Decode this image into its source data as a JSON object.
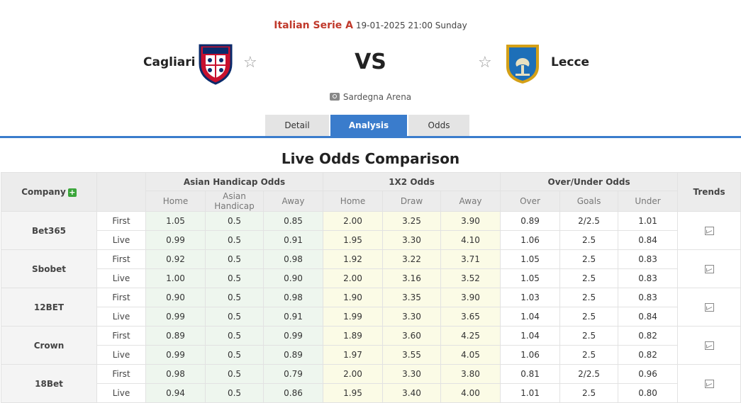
{
  "match": {
    "league": "Italian Serie A",
    "datetime": "19-01-2025 21:00 Sunday",
    "home_team": "Cagliari",
    "away_team": "Lecce",
    "vs": "VS",
    "venue": "Sardegna Arena",
    "home_logo_text": "CAGLIARI",
    "away_logo_text": "LECCE"
  },
  "tabs": [
    {
      "label": "Detail"
    },
    {
      "label": "Analysis"
    },
    {
      "label": "Odds"
    }
  ],
  "section_title": "Live Odds Comparison",
  "table": {
    "company_header": "Company",
    "trends_header": "Trends",
    "groups": [
      "Asian Handicap Odds",
      "1X2 Odds",
      "Over/Under Odds"
    ],
    "subheaders": [
      "Home",
      "Asian Handicap",
      "Away",
      "Home",
      "Draw",
      "Away",
      "Over",
      "Goals",
      "Under"
    ],
    "companies": [
      {
        "name": "Bet365",
        "rows": [
          {
            "type": "First",
            "vals": [
              "1.05",
              "0.5",
              "0.85",
              "2.00",
              "3.25",
              "3.90",
              "0.89",
              "2/2.5",
              "1.01"
            ]
          },
          {
            "type": "Live",
            "vals": [
              "0.99",
              "0.5",
              "0.91",
              "1.95",
              "3.30",
              "4.10",
              "1.06",
              "2.5",
              "0.84"
            ]
          }
        ]
      },
      {
        "name": "Sbobet",
        "rows": [
          {
            "type": "First",
            "vals": [
              "0.92",
              "0.5",
              "0.98",
              "1.92",
              "3.22",
              "3.71",
              "1.05",
              "2.5",
              "0.83"
            ]
          },
          {
            "type": "Live",
            "vals": [
              "1.00",
              "0.5",
              "0.90",
              "2.00",
              "3.16",
              "3.52",
              "1.05",
              "2.5",
              "0.83"
            ]
          }
        ]
      },
      {
        "name": "12BET",
        "rows": [
          {
            "type": "First",
            "vals": [
              "0.90",
              "0.5",
              "0.98",
              "1.90",
              "3.35",
              "3.90",
              "1.03",
              "2.5",
              "0.83"
            ]
          },
          {
            "type": "Live",
            "vals": [
              "0.99",
              "0.5",
              "0.91",
              "1.99",
              "3.30",
              "3.65",
              "1.04",
              "2.5",
              "0.84"
            ]
          }
        ]
      },
      {
        "name": "Crown",
        "rows": [
          {
            "type": "First",
            "vals": [
              "0.89",
              "0.5",
              "0.99",
              "1.89",
              "3.60",
              "4.25",
              "1.04",
              "2.5",
              "0.82"
            ]
          },
          {
            "type": "Live",
            "vals": [
              "0.99",
              "0.5",
              "0.89",
              "1.97",
              "3.55",
              "4.05",
              "1.06",
              "2.5",
              "0.82"
            ]
          }
        ]
      },
      {
        "name": "18Bet",
        "rows": [
          {
            "type": "First",
            "vals": [
              "0.98",
              "0.5",
              "0.79",
              "2.00",
              "3.30",
              "3.80",
              "0.81",
              "2/2.5",
              "0.96"
            ]
          },
          {
            "type": "Live",
            "vals": [
              "0.94",
              "0.5",
              "0.86",
              "1.95",
              "3.40",
              "4.00",
              "1.01",
              "2.5",
              "0.80"
            ]
          }
        ]
      }
    ]
  },
  "colors": {
    "accent": "#3a7ccc",
    "league": "#c0392b",
    "add_button": "#3aa53a"
  },
  "icons": {
    "favorite": "star-outline",
    "trend": "chart-line-icon",
    "venue": "stadium-icon",
    "add": "plus-icon"
  }
}
